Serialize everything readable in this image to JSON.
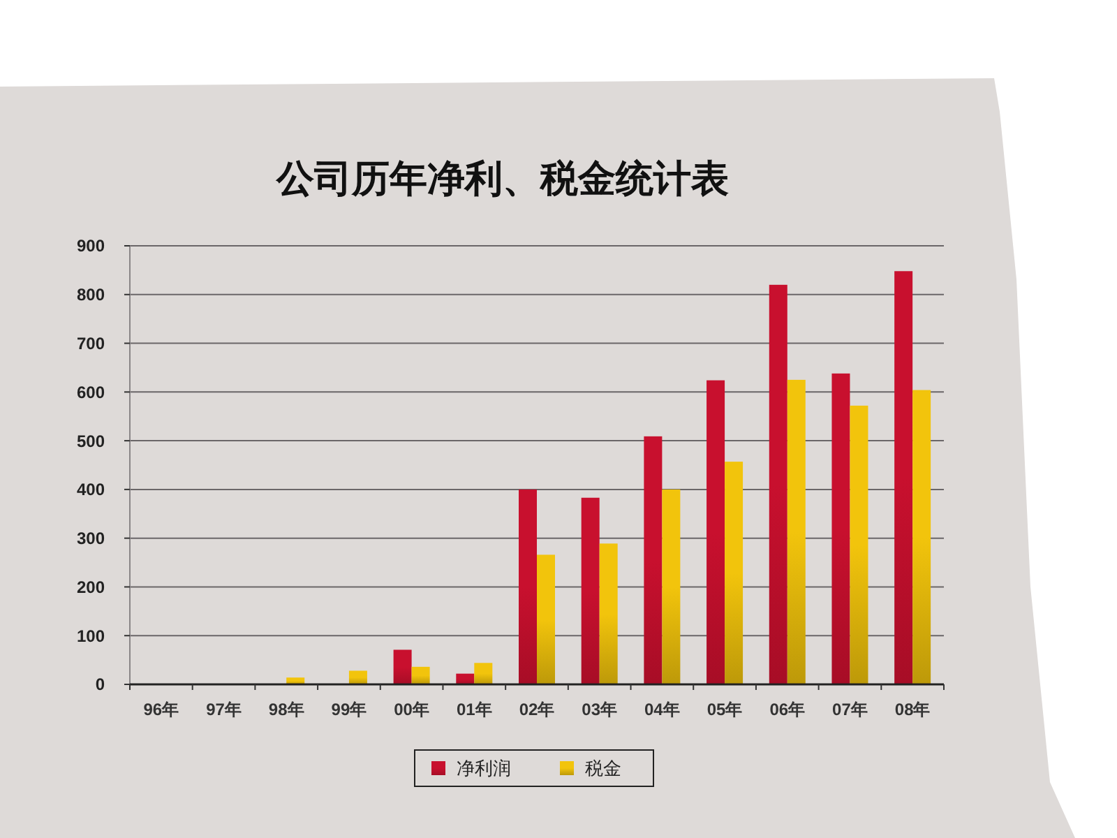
{
  "chart_data": {
    "type": "bar",
    "title": "公司历年净利、税金统计表",
    "categories": [
      "96年",
      "97年",
      "98年",
      "99年",
      "00年",
      "01年",
      "02年",
      "03年",
      "04年",
      "05年",
      "06年",
      "07年",
      "08年"
    ],
    "series": [
      {
        "name": "净利润",
        "color": "#c8102e",
        "values": [
          null,
          null,
          null,
          null,
          71,
          22,
          400,
          383,
          509,
          624,
          820,
          638,
          848
        ]
      },
      {
        "name": "税金",
        "color": "#f2c40c",
        "values": [
          null,
          null,
          14,
          28,
          36,
          44,
          266,
          289,
          400,
          457,
          625,
          572,
          604
        ]
      }
    ],
    "ylim": [
      0,
      900
    ],
    "yticks": [
      0,
      100,
      200,
      300,
      400,
      500,
      600,
      700,
      800,
      900
    ],
    "grid": "y",
    "legend": "bottom"
  }
}
